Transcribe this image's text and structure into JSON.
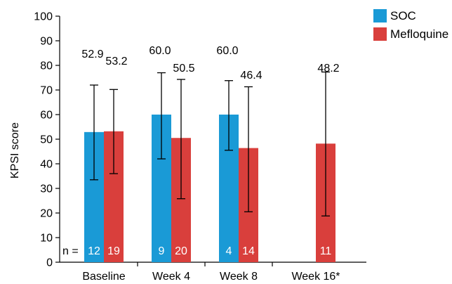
{
  "chart_data": {
    "type": "bar",
    "ylabel": "KPSI score",
    "xlabel": "",
    "ylim": [
      0,
      100
    ],
    "yticks": [
      0,
      10,
      20,
      30,
      40,
      50,
      60,
      70,
      80,
      90,
      100
    ],
    "categories": [
      "Baseline",
      "Week 4",
      "Week 8",
      "Week 16*"
    ],
    "n_prefix": "n =",
    "legend_position": "top-right",
    "grid": false,
    "series": [
      {
        "name": "SOC",
        "color": "#1a9ad6",
        "values": [
          52.9,
          60.0,
          60.0,
          null
        ],
        "value_labels": [
          "52.9",
          "60.0",
          "60.0",
          null
        ],
        "error_low": [
          33.5,
          42.0,
          45.5,
          null
        ],
        "error_high": [
          72.0,
          77.0,
          73.8,
          null
        ],
        "n": [
          "12",
          "9",
          "4",
          null
        ]
      },
      {
        "name": "Mefloquine",
        "color": "#d93f3c",
        "values": [
          53.2,
          50.5,
          46.4,
          48.2
        ],
        "value_labels": [
          "53.2",
          "50.5",
          "46.4",
          "48.2"
        ],
        "error_low": [
          36.0,
          25.8,
          20.5,
          18.8
        ],
        "error_high": [
          70.2,
          74.3,
          71.3,
          77.3
        ],
        "n": [
          "19",
          "20",
          "14",
          "11"
        ]
      }
    ]
  }
}
